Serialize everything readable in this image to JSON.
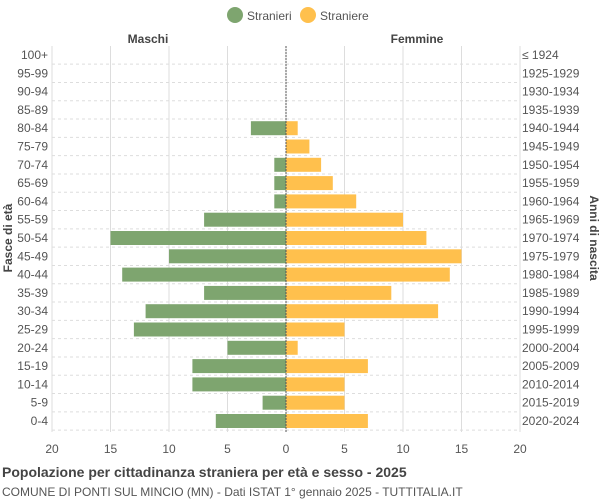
{
  "chart_data": {
    "type": "bar",
    "title": "Popolazione per cittadinanza straniera per età e sesso - 2025",
    "subtitle": "COMUNE DI PONTI SUL MINCIO (MN) - Dati ISTAT 1° gennaio 2025 - TUTTITALIA.IT",
    "left_header": "Maschi",
    "right_header": "Femmine",
    "ylabel_left": "Fasce di età",
    "ylabel_right": "Anni di nascita",
    "xlim": [
      -20,
      20
    ],
    "xticks": [
      "20",
      "15",
      "10",
      "5",
      "0",
      "5",
      "10",
      "15",
      "20"
    ],
    "grid": true,
    "legend_position": "top",
    "categories": [
      "100+",
      "95-99",
      "90-94",
      "85-89",
      "80-84",
      "75-79",
      "70-74",
      "65-69",
      "60-64",
      "55-59",
      "50-54",
      "45-49",
      "40-44",
      "35-39",
      "30-34",
      "25-29",
      "20-24",
      "15-19",
      "10-14",
      "5-9",
      "0-4"
    ],
    "birth_years": [
      "≤ 1924",
      "1925-1929",
      "1930-1934",
      "1935-1939",
      "1940-1944",
      "1945-1949",
      "1950-1954",
      "1955-1959",
      "1960-1964",
      "1965-1969",
      "1970-1974",
      "1975-1979",
      "1980-1984",
      "1985-1989",
      "1990-1994",
      "1995-1999",
      "2000-2004",
      "2005-2009",
      "2010-2014",
      "2015-2019",
      "2020-2024"
    ],
    "series": [
      {
        "name": "Stranieri",
        "color": "#7ea56f",
        "values": [
          0,
          0,
          0,
          0,
          3,
          0,
          1,
          1,
          1,
          7,
          15,
          10,
          14,
          7,
          12,
          13,
          5,
          8,
          8,
          2,
          6
        ]
      },
      {
        "name": "Straniere",
        "color": "#ffc04d",
        "values": [
          0,
          0,
          0,
          0,
          1,
          2,
          3,
          4,
          6,
          10,
          12,
          15,
          14,
          9,
          13,
          5,
          1,
          7,
          5,
          5,
          7
        ]
      }
    ]
  }
}
